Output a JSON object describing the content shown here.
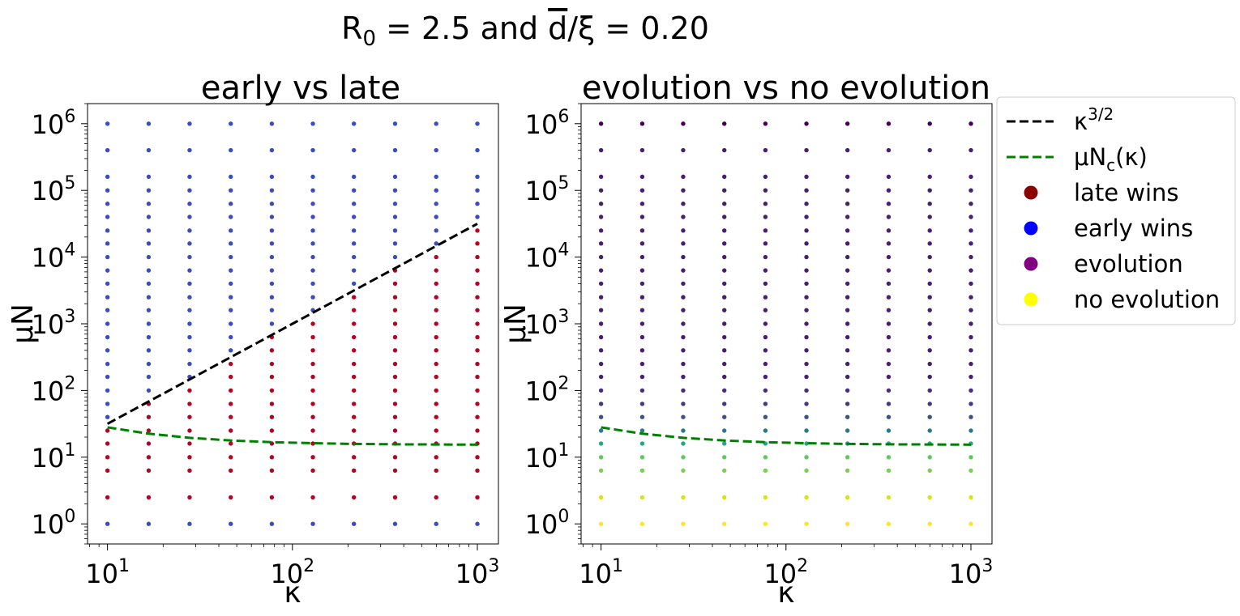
{
  "suptitle": {
    "r_symbol": "R",
    "r_subscript": "0",
    "r_value": " = 2.5 and ",
    "d_symbol": "d",
    "ratio_text": "/ξ = 0.20"
  },
  "legend": {
    "entries": [
      {
        "label": "κ",
        "superscript": "3/2",
        "kind": "line",
        "color": "#000000"
      },
      {
        "label": "μN",
        "subscript": "c",
        "suffix": "(κ)",
        "kind": "line",
        "color": "#008000"
      },
      {
        "label": "late wins",
        "kind": "marker",
        "color": "#8b0000"
      },
      {
        "label": "early wins",
        "kind": "marker",
        "color": "#0000ff"
      },
      {
        "label": "evolution",
        "kind": "marker",
        "color": "#800080"
      },
      {
        "label": "no evolution",
        "kind": "marker",
        "color": "#ffff00"
      }
    ]
  },
  "chart_data": [
    {
      "type": "scatter",
      "title": "early vs late",
      "xlabel": "κ",
      "ylabel": "μN",
      "xscale": "log",
      "yscale": "log",
      "xlim": [
        7.8,
        1300
      ],
      "ylim": [
        0.5,
        2000000
      ],
      "xticks": [
        {
          "value": 10,
          "label": "10",
          "exp": "1"
        },
        {
          "value": 100,
          "label": "10",
          "exp": "2"
        },
        {
          "value": 1000,
          "label": "10",
          "exp": "3"
        }
      ],
      "yticks": [
        {
          "value": 1,
          "label": "10",
          "exp": "0"
        },
        {
          "value": 10,
          "label": "10",
          "exp": "1"
        },
        {
          "value": 100,
          "label": "10",
          "exp": "2"
        },
        {
          "value": 1000,
          "label": "10",
          "exp": "3"
        },
        {
          "value": 10000,
          "label": "10",
          "exp": "4"
        },
        {
          "value": 100000,
          "label": "10",
          "exp": "5"
        },
        {
          "value": 1000000,
          "label": "10",
          "exp": "6"
        }
      ],
      "kappa_values": [
        10,
        16.7,
        27.8,
        46.4,
        77.4,
        129,
        215,
        359,
        599,
        1000
      ],
      "muN_values": [
        1,
        2.5,
        6.3,
        10,
        16,
        25,
        40,
        63,
        100,
        160,
        250,
        400,
        630,
        1000,
        1600,
        2500,
        4000,
        6300,
        10000,
        16000,
        25000,
        40000,
        63000,
        100000,
        160000,
        400000,
        1000000
      ],
      "series": [
        {
          "name": "κ^(3/2)",
          "kind": "line",
          "color": "#000000",
          "dash": "dash",
          "x": [
            10,
            1000
          ],
          "y": [
            31.6,
            31623
          ]
        },
        {
          "name": "μN_c(κ)",
          "kind": "line",
          "color": "#008000",
          "dash": "dash",
          "x": [
            10,
            16.7,
            27.8,
            46.4,
            77.4,
            129,
            215,
            359,
            599,
            1000
          ],
          "y": [
            28,
            22.5,
            19.5,
            17.8,
            16.8,
            16.2,
            15.8,
            15.6,
            15.5,
            15.4
          ]
        },
        {
          "name": "late wins",
          "kind": "points",
          "color": "#b40426",
          "rule": "1 < μN < κ^(3/2)"
        },
        {
          "name": "early wins",
          "kind": "points",
          "color": "#3b4cc0",
          "rule": "μN = 1 or μN > κ^(3/2)"
        }
      ]
    },
    {
      "type": "scatter",
      "title": "evolution vs no evolution",
      "xlabel": "κ",
      "ylabel": "μN",
      "xscale": "log",
      "yscale": "log",
      "xlim": [
        7.8,
        1300
      ],
      "ylim": [
        0.5,
        2000000
      ],
      "xticks": [
        {
          "value": 10,
          "label": "10",
          "exp": "1"
        },
        {
          "value": 100,
          "label": "10",
          "exp": "2"
        },
        {
          "value": 1000,
          "label": "10",
          "exp": "3"
        }
      ],
      "yticks": [
        {
          "value": 1,
          "label": "10",
          "exp": "0"
        },
        {
          "value": 10,
          "label": "10",
          "exp": "1"
        },
        {
          "value": 100,
          "label": "10",
          "exp": "2"
        },
        {
          "value": 1000,
          "label": "10",
          "exp": "3"
        },
        {
          "value": 10000,
          "label": "10",
          "exp": "4"
        },
        {
          "value": 100000,
          "label": "10",
          "exp": "5"
        },
        {
          "value": 1000000,
          "label": "10",
          "exp": "6"
        }
      ],
      "series": [
        {
          "name": "μN_c(κ)",
          "kind": "line",
          "color": "#008000",
          "dash": "dash",
          "x": [
            10,
            16.7,
            27.8,
            46.4,
            77.4,
            129,
            215,
            359,
            599,
            1000
          ],
          "y": [
            28,
            22.5,
            19.5,
            17.8,
            16.8,
            16.2,
            15.8,
            15.6,
            15.5,
            15.4
          ]
        },
        {
          "name": "evolution",
          "kind": "points",
          "color_scale": "viridis",
          "value_range": [
            0,
            1
          ]
        },
        {
          "name": "no evolution",
          "kind": "points",
          "color_scale": "viridis",
          "value_range": [
            0,
            1
          ]
        }
      ],
      "colormap_by_muN": [
        {
          "muN": 1,
          "color": "#fde725"
        },
        {
          "muN": 2.5,
          "color": "#d8e219"
        },
        {
          "muN": 6.3,
          "color": "#7ad151"
        },
        {
          "muN": 10,
          "color": "#5ec962"
        },
        {
          "muN": 16,
          "color": "#22a884"
        },
        {
          "muN": 25,
          "color": "#2a788e"
        },
        {
          "muN": 40,
          "color": "#3b528b"
        },
        {
          "muN": 63,
          "color": "#443983"
        },
        {
          "muN": 100,
          "color": "#472d7b"
        },
        {
          "muN": 160,
          "color": "#481f70"
        },
        {
          "muN": 1000000,
          "color": "#440154"
        }
      ]
    }
  ]
}
